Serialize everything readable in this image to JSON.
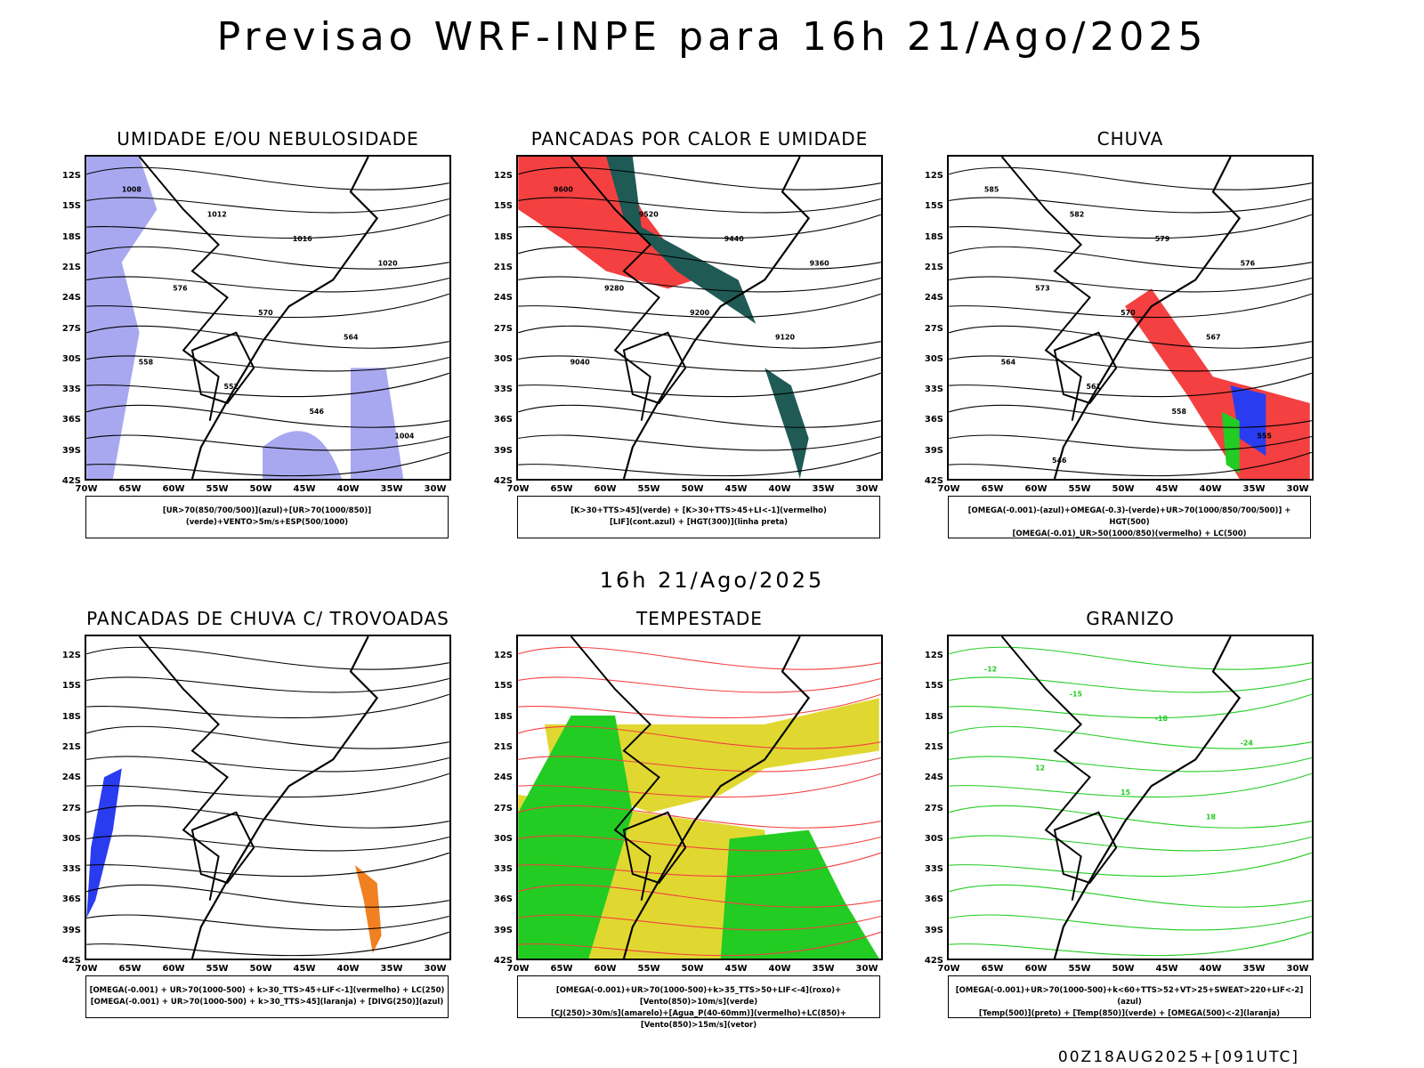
{
  "title": "Previsao WRF-INPE  para 16h 21/Ago/2025",
  "mid_title": "16h 21/Ago/2025",
  "footer": "00Z18AUG2025+[091UTC]",
  "lat_ticks": [
    "12S",
    "15S",
    "18S",
    "21S",
    "24S",
    "27S",
    "30S",
    "33S",
    "36S",
    "39S",
    "42S"
  ],
  "lon_ticks": [
    "70W",
    "65W",
    "60W",
    "55W",
    "50W",
    "45W",
    "40W",
    "35W",
    "30W"
  ],
  "colors": {
    "red": "#f44040",
    "green": "#22cc22",
    "blue": "#2a3cf0",
    "lightblue": "#a8a8f0",
    "teal": "#1f5a55",
    "yellow": "#e0d830",
    "orange": "#f08020"
  },
  "panels": [
    {
      "id": "umidade",
      "title": "UMIDADE E/OU NEBULOSIDADE",
      "legend": [
        "[UR>70(850/700/500)](azul)+[UR>70(1000/850)](verde)+VENTO>5m/s+ESP(500/1000)"
      ],
      "labels": [
        "1008",
        "1012",
        "1016",
        "1020",
        "576",
        "570",
        "564",
        "558",
        "552",
        "546",
        "1004"
      ]
    },
    {
      "id": "pancadas-calor",
      "title": "PANCADAS POR CALOR E UMIDADE",
      "legend": [
        "[K>30+TTS>45](verde) + [K>30+TTS>45+LI<-1](vermelho)",
        "[LIF](cont.azul) + [HGT(300)](linha preta)"
      ],
      "labels": [
        "9600",
        "9520",
        "9440",
        "9360",
        "9280",
        "9200",
        "9120",
        "9040"
      ]
    },
    {
      "id": "chuva",
      "title": "CHUVA",
      "legend": [
        "[OMEGA(-0.001)-(azul)+OMEGA(-0.3)-(verde)+UR>70(1000/850/700/500)] + HGT(500)",
        "[OMEGA(-0.01)_UR>50(1000/850)(vermelho) + LC(500)"
      ],
      "labels": [
        "585",
        "582",
        "579",
        "576",
        "573",
        "570",
        "567",
        "564",
        "561",
        "558",
        "555",
        "546"
      ]
    },
    {
      "id": "trovoadas",
      "title": "PANCADAS DE CHUVA C/ TROVOADAS",
      "legend": [
        "[OMEGA(-0.001) + UR>70(1000-500) + k>30_TTS>45+LIF<-1](vermelho) + LC(250)",
        "[OMEGA(-0.001) + UR>70(1000-500) + k>30_TTS>45](laranja) + [DIVG(250)](azul)"
      ],
      "labels": []
    },
    {
      "id": "tempestade",
      "title": "TEMPESTADE",
      "legend": [
        "[OMEGA(-0.001)+UR>70(1000-500)+k>35_TTS>50+LIF<-4](roxo)+[Vento(850)>10m/s](verde)",
        "[CJ(250)>30m/s](amarelo)+[Agua_P(40-60mm)](vermelho)+LC(850)+[Vento(850)>15m/s](vetor)"
      ],
      "labels": []
    },
    {
      "id": "granizo",
      "title": "GRANIZO",
      "legend": [
        "[OMEGA(-0.001)+UR>70(1000-500)+k<60+TTS>52+VT>25+SWEAT>220+LIF<-2](azul)",
        "[Temp(500)](preto) + [Temp(850)](verde) + [OMEGA(500)<-2](laranja)"
      ],
      "labels": [
        "-12",
        "-15",
        "-18",
        "-24",
        "12",
        "15",
        "18"
      ]
    }
  ]
}
